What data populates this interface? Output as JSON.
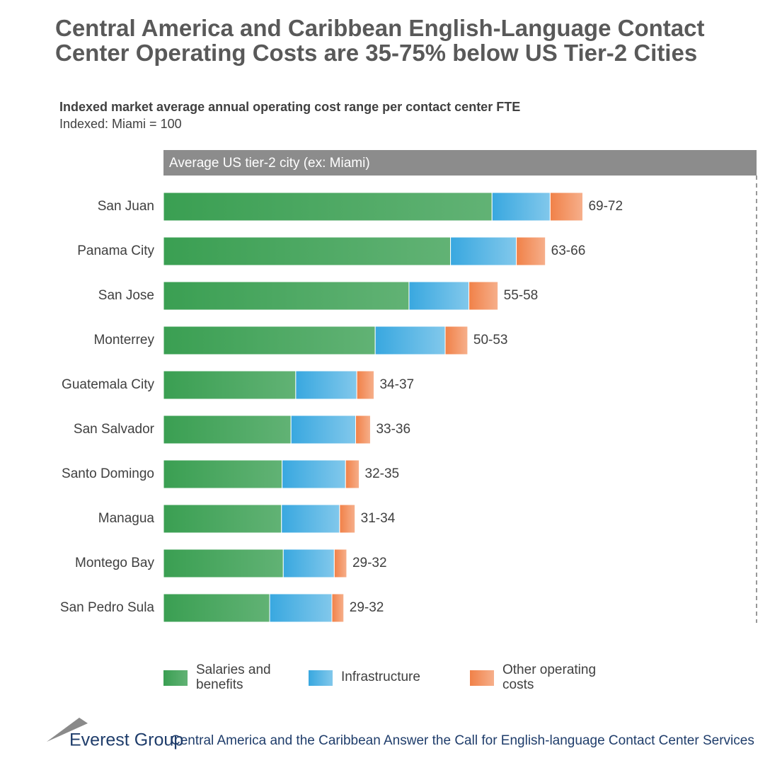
{
  "chart_data": {
    "type": "stacked-barh",
    "title": "Central America and Caribbean English-Language Contact Center Operating Costs are 35-75% below US Tier-2 Cities",
    "subtitle": "Indexed market average annual operating cost range per contact center FTE",
    "subtitle2": "Indexed: Miami = 100",
    "reference_label": "Average US tier-2 city (ex: Miami)",
    "categories": [
      "San Juan",
      "Panama City",
      "San Jose",
      "Monterrey",
      "Guatemala City",
      "San Salvador",
      "Santo Domingo",
      "Managua",
      "Montego Bay",
      "San Pedro Sula"
    ],
    "series": [
      {
        "name": "Salaries and benefits",
        "color": "#3a9f52",
        "values": [
          55.4,
          48.4,
          41.4,
          35.7,
          22.3,
          21.5,
          20.0,
          19.9,
          20.2,
          17.9
        ]
      },
      {
        "name": "Infrastructure",
        "color": "#2ea3de",
        "values": [
          9.8,
          11.1,
          10.1,
          11.8,
          10.3,
          10.9,
          10.7,
          9.8,
          8.6,
          10.5
        ]
      },
      {
        "name": "Other operating costs",
        "color": "#f07a3e",
        "values": [
          5.5,
          4.9,
          4.9,
          3.8,
          2.9,
          2.5,
          2.3,
          2.6,
          2.1,
          2.0
        ]
      }
    ],
    "total_labels": [
      "69-72",
      "63-66",
      "55-58",
      "50-53",
      "34-37",
      "33-36",
      "32-35",
      "31-34",
      "29-32",
      "29-32"
    ],
    "xlim": [
      0,
      100
    ],
    "source_brand": "Everest Group",
    "source_text": "Central America and the Caribbean Answer the Call for English-language Contact Center Services"
  }
}
